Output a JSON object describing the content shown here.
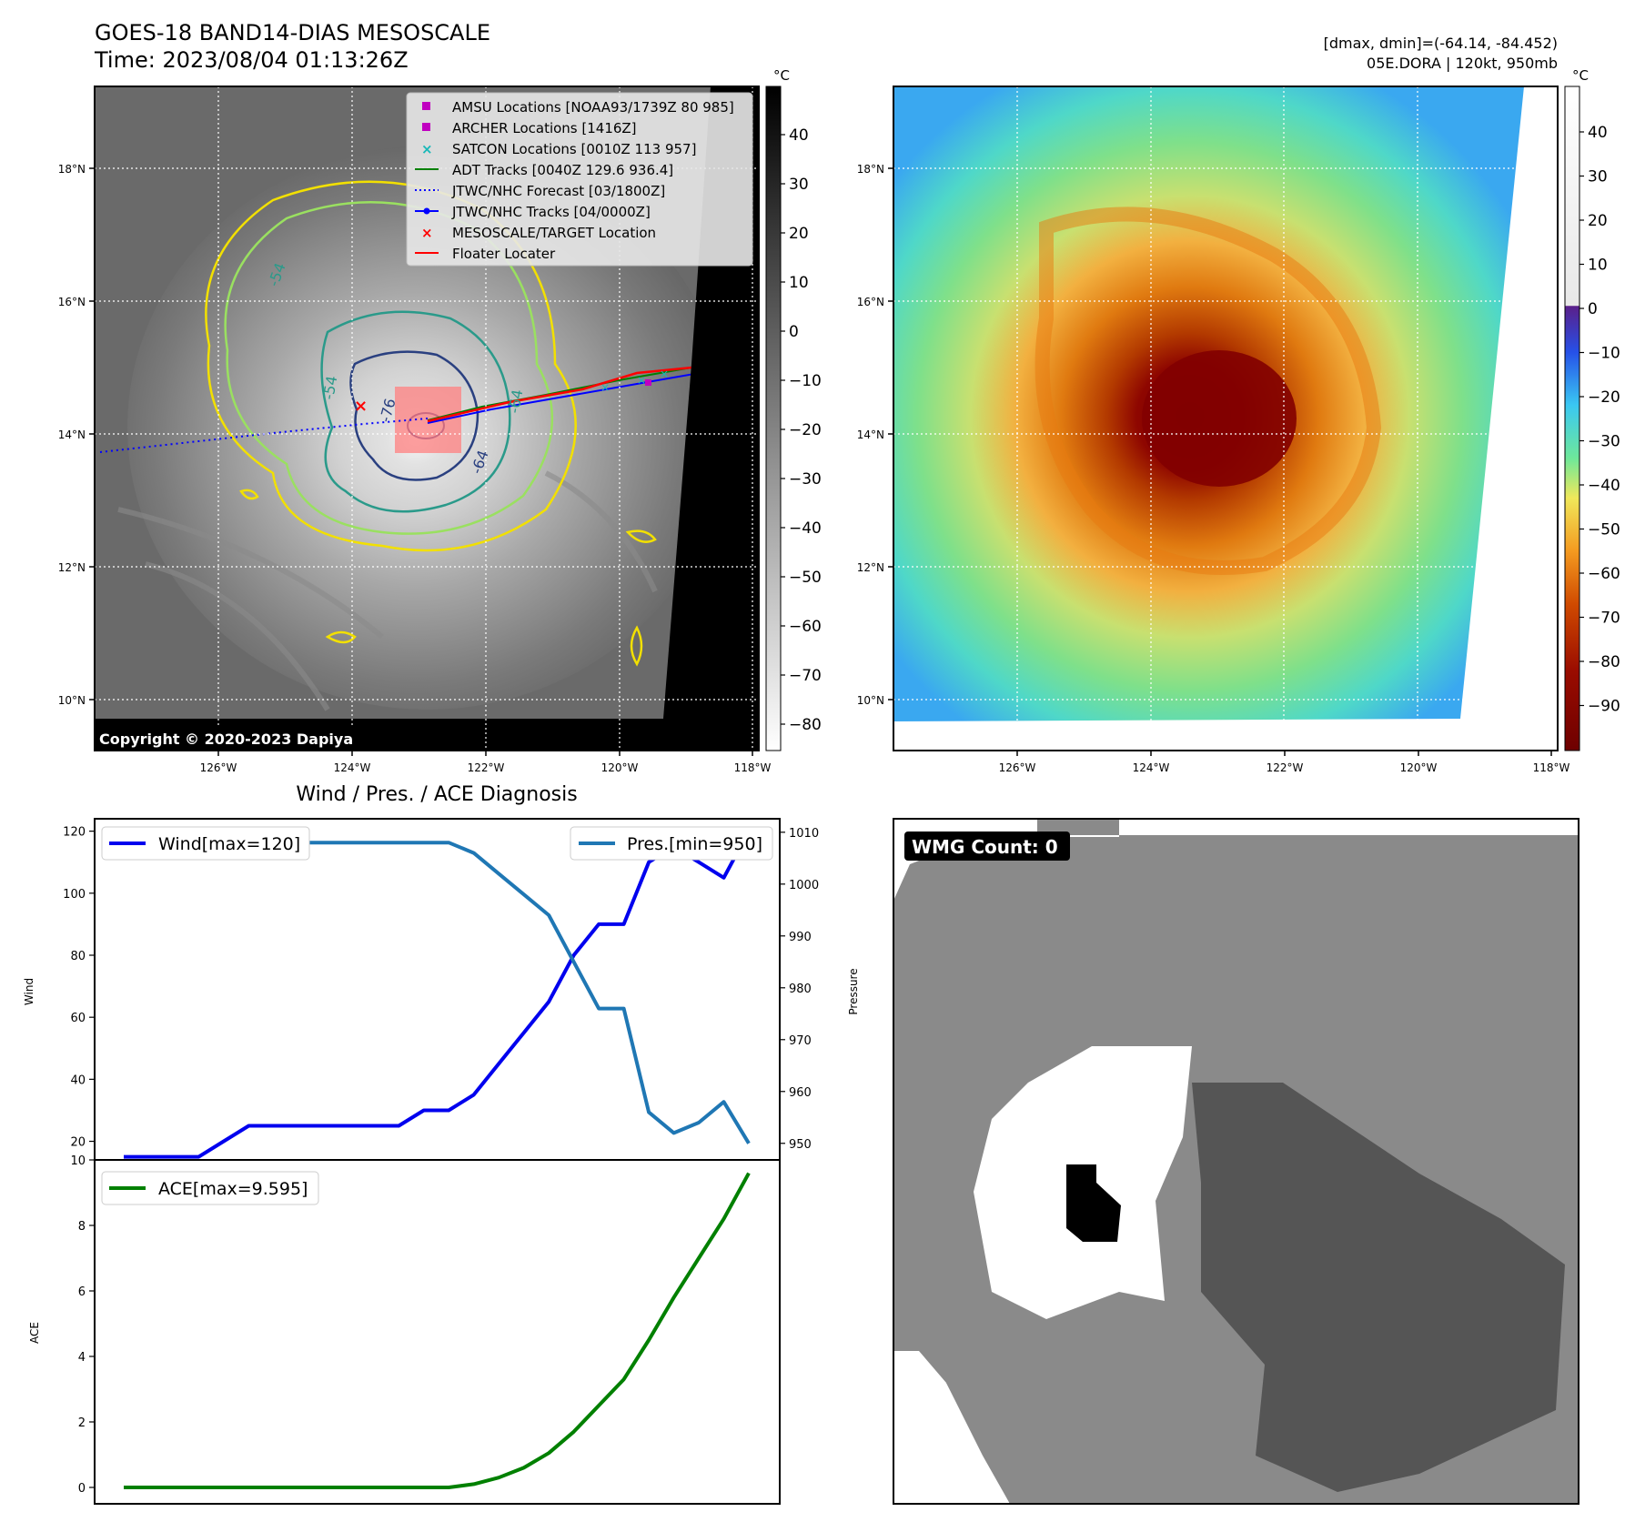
{
  "header": {
    "title": "GOES-18 BAND14-DIAS MESOSCALE",
    "time": "Time: 2023/08/04 01:13:26Z",
    "stats": "[dmax, dmin]=(-64.14, -84.452)",
    "storm": "05E.DORA | 120kt, 950mb"
  },
  "copyright": "Copyright © 2020-2023 Dapiya",
  "axes": {
    "lon_ticks": [
      "126°W",
      "124°W",
      "122°W",
      "120°W",
      "118°W"
    ],
    "lat_ticks": [
      "18°N",
      "16°N",
      "14°N",
      "12°N",
      "10°N"
    ]
  },
  "colorbar_gray": {
    "unit": "°C",
    "ticks": [
      "40",
      "30",
      "20",
      "10",
      "0",
      "−10",
      "−20",
      "−30",
      "−40",
      "−50",
      "−60",
      "−70",
      "−80"
    ]
  },
  "colorbar_color": {
    "unit": "°C",
    "ticks": [
      "40",
      "30",
      "20",
      "10",
      "0",
      "−10",
      "−20",
      "−30",
      "−40",
      "−50",
      "−60",
      "−70",
      "−80",
      "−90"
    ]
  },
  "legend": [
    {
      "label": "AMSU Locations [NOAA93/1739Z 80 985]",
      "color": "#c000c0",
      "marker": "square"
    },
    {
      "label": "ARCHER Locations [1416Z]",
      "color": "#c000c0",
      "marker": "square"
    },
    {
      "label": "SATCON Locations [0010Z 113 957]",
      "color": "#17b8b8",
      "marker": "x"
    },
    {
      "label": "ADT Tracks [0040Z 129.6 936.4]",
      "color": "#008000",
      "marker": "line"
    },
    {
      "label": "JTWC/NHC Forecast [03/1800Z]",
      "color": "#0000ff",
      "marker": "dotted"
    },
    {
      "label": "JTWC/NHC Tracks [04/0000Z]",
      "color": "#0000ff",
      "marker": "line-dot"
    },
    {
      "label": "MESOSCALE/TARGET Location",
      "color": "#ff0000",
      "marker": "x"
    },
    {
      "label": "Floater Locater",
      "color": "#ff0000",
      "marker": "line"
    }
  ],
  "contour_labels": [
    "-54",
    "-54",
    "-76",
    "-64",
    "-64"
  ],
  "diag_title": "Wind / Pres. / ACE Diagnosis",
  "wmg_label": "WMG Count: 0",
  "chart_data": [
    {
      "type": "line",
      "title": "Wind / Pres. / ACE Diagnosis",
      "ylabel": "Wind",
      "y2label": "Pressure",
      "ylim": [
        14,
        124
      ],
      "y2lim": [
        946.8,
        1012.6
      ],
      "yticks": [
        20,
        40,
        60,
        80,
        100,
        120
      ],
      "y2ticks": [
        950,
        960,
        970,
        980,
        990,
        1000,
        1010
      ],
      "grid": false,
      "legend_wind": "Wind[max=120]",
      "legend_pres": "Pres.[min=950]",
      "series": [
        {
          "name": "Wind[max=120]",
          "axis": "left",
          "color": "#0000ee",
          "values": [
            15,
            15,
            15,
            15,
            20,
            25,
            25,
            25,
            25,
            25,
            25,
            25,
            30,
            30,
            35,
            45,
            55,
            65,
            80,
            90,
            90,
            110,
            115,
            110,
            105,
            120
          ]
        },
        {
          "name": "Pres.[min=950]",
          "axis": "right",
          "color": "#1f77b4",
          "values": [
            1010,
            1010,
            1010,
            1010,
            1010,
            1009,
            1008,
            1008,
            1008,
            1008,
            1008,
            1008,
            1008,
            1008,
            1006,
            1002,
            998,
            994,
            985,
            976,
            976,
            956,
            952,
            954,
            958,
            950
          ]
        }
      ]
    },
    {
      "type": "line",
      "ylabel": "ACE",
      "ylim": [
        -0.5,
        10
      ],
      "yticks": [
        0,
        2,
        4,
        6,
        8,
        10
      ],
      "grid": false,
      "legend_ace": "ACE[max=9.595]",
      "series": [
        {
          "name": "ACE[max=9.595]",
          "color": "#008000",
          "values": [
            0,
            0,
            0,
            0,
            0,
            0,
            0,
            0,
            0,
            0,
            0,
            0,
            0,
            0,
            0.1,
            0.3,
            0.6,
            1.05,
            1.7,
            2.5,
            3.3,
            4.5,
            5.8,
            7.0,
            8.2,
            9.595
          ]
        }
      ]
    }
  ]
}
